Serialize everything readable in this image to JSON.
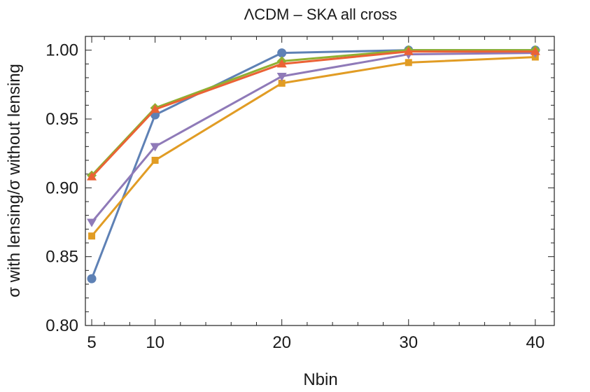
{
  "chart_data": {
    "type": "line",
    "title": "ΛCDM – SKA all cross",
    "xlabel": "Nbin",
    "ylabel": "σ with lensing/σ without lensing",
    "x": [
      5,
      10,
      20,
      30,
      40
    ],
    "xlim": [
      4.5,
      41.5
    ],
    "ylim": [
      0.8,
      1.01
    ],
    "xticks": [
      5,
      10,
      20,
      30,
      40
    ],
    "yticks": [
      0.8,
      0.85,
      0.9,
      0.95,
      1.0
    ],
    "ytick_labels": [
      "0.80",
      "0.85",
      "0.90",
      "0.95",
      "1.00"
    ],
    "xtick_labels": [
      "5",
      "10",
      "20",
      "30",
      "40"
    ],
    "grid": false,
    "series": [
      {
        "color": "#5e81b5",
        "marker": "circle",
        "values": [
          0.834,
          0.953,
          0.998,
          1.0,
          1.0
        ]
      },
      {
        "color": "#e19c24",
        "marker": "square",
        "values": [
          0.865,
          0.92,
          0.976,
          0.991,
          0.995
        ]
      },
      {
        "color": "#8f7ab8",
        "marker": "triangle-down",
        "values": [
          0.875,
          0.93,
          0.981,
          0.997,
          0.998
        ]
      },
      {
        "color": "#8fb032",
        "marker": "diamond",
        "values": [
          0.909,
          0.958,
          0.992,
          1.0,
          1.0
        ]
      },
      {
        "color": "#eb6235",
        "marker": "triangle-up",
        "values": [
          0.908,
          0.957,
          0.99,
          0.999,
          0.999
        ]
      }
    ]
  }
}
